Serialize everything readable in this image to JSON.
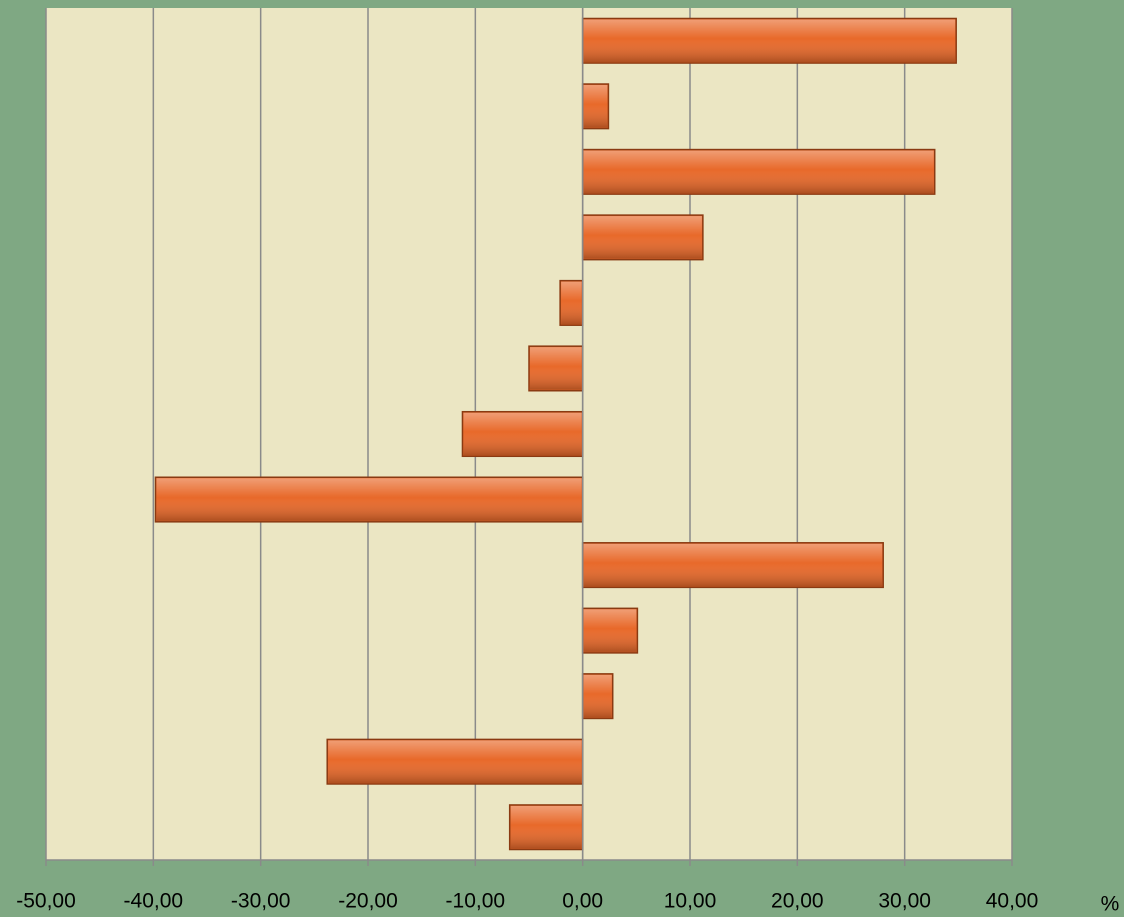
{
  "chart_data": {
    "type": "hbar",
    "categories": [
      null,
      null,
      null,
      null,
      null,
      null,
      null,
      null,
      null,
      null,
      null,
      null,
      null
    ],
    "values": [
      34.8,
      2.4,
      32.8,
      11.2,
      -2.1,
      -5.0,
      -11.2,
      -39.8,
      28.0,
      5.1,
      2.8,
      -23.8,
      -6.8
    ],
    "color": "#e8692a",
    "xlabel": "%",
    "xlim": [
      -50,
      40
    ],
    "xticks": [
      {
        "value": -50,
        "label": "-50,00"
      },
      {
        "value": -40,
        "label": "-40,00"
      },
      {
        "value": -30,
        "label": "-30,00"
      },
      {
        "value": -20,
        "label": "-20,00"
      },
      {
        "value": -10,
        "label": "-10,00"
      },
      {
        "value": 0,
        "label": "0,00"
      },
      {
        "value": 10,
        "label": "10,00"
      },
      {
        "value": 20,
        "label": "20,00"
      },
      {
        "value": 30,
        "label": "30,00"
      },
      {
        "value": 40,
        "label": "40,00"
      }
    ],
    "grid": true
  }
}
